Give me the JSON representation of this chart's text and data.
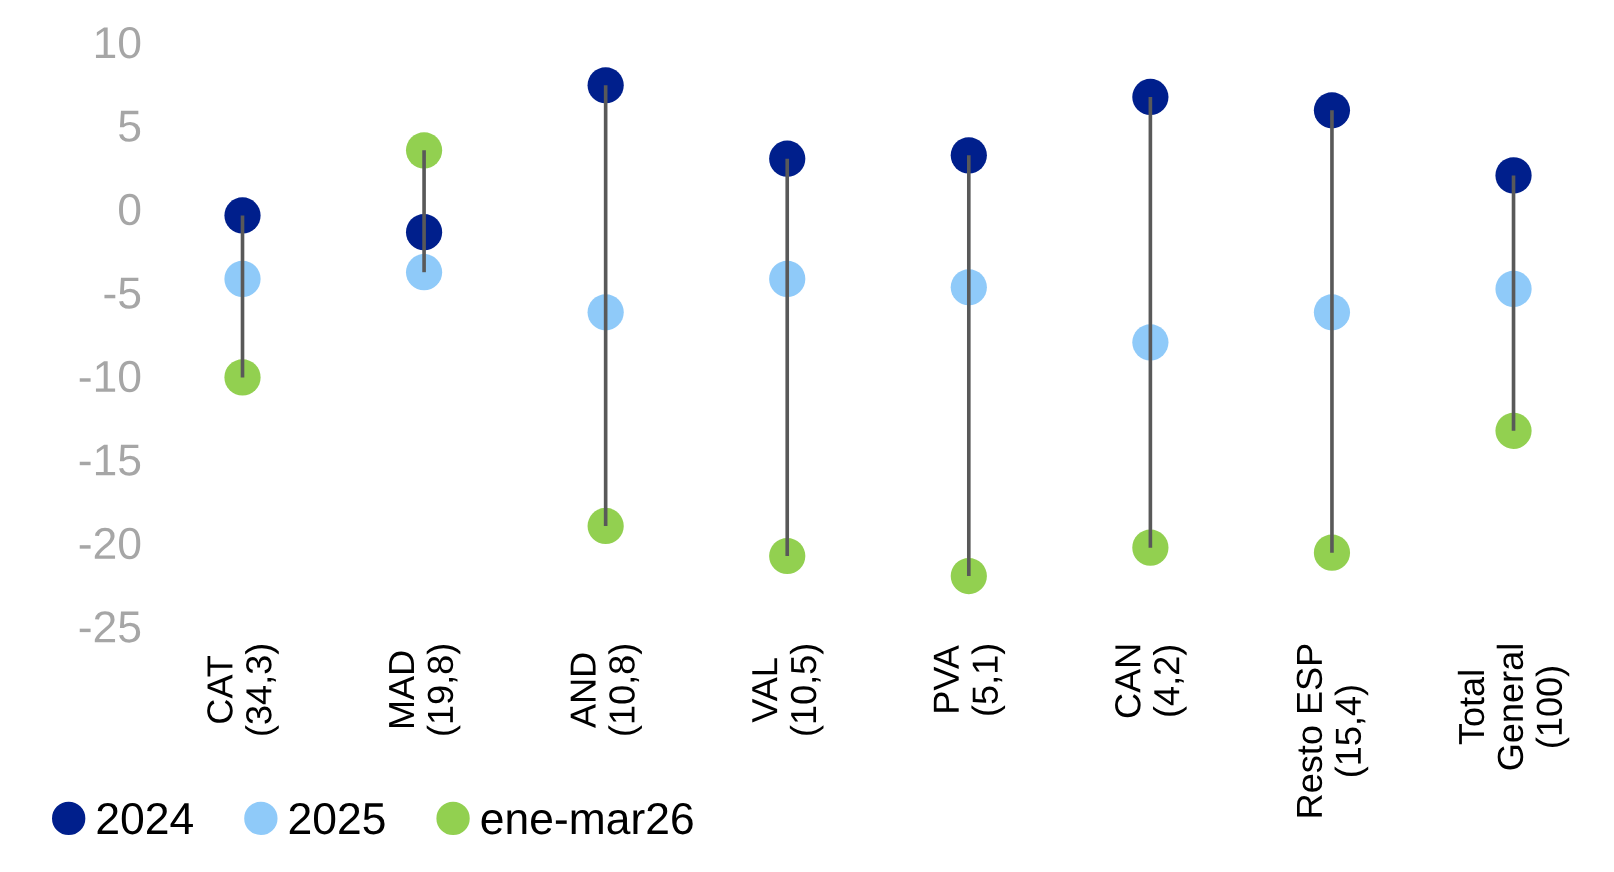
{
  "chart_data": {
    "type": "scatter",
    "categories": [
      "CAT\n(34,3)",
      "MAD\n(19,8)",
      "AND\n(10,8)",
      "VAL\n(10,5)",
      "PVA\n(5,1)",
      "CAN\n(4,2)",
      "Resto ESP\n(15,4)",
      "Total\nGeneral\n(100)"
    ],
    "series": [
      {
        "type": "bar",
        "color": "#595959",
        "base": [
          -10.1,
          -3.8,
          -19.0,
          -20.8,
          -22.0,
          -20.3,
          -20.6,
          -13.3
        ],
        "values": [
          9.7,
          7.3,
          26.4,
          23.8,
          25.2,
          27.0,
          26.5,
          15.3
        ]
      },
      {
        "name": "2024",
        "color": "#001f8c",
        "values": [
          -0.4,
          -1.4,
          7.4,
          3.0,
          3.2,
          6.7,
          5.9,
          2.0
        ]
      },
      {
        "name": "2025",
        "color": "#8fcaf9",
        "values": [
          -4.2,
          -3.8,
          -6.2,
          -4.2,
          -4.7,
          -8.0,
          -6.2,
          -4.8
        ]
      },
      {
        "name": "ene-mar26",
        "color": "#92d050",
        "values": [
          -10.1,
          3.5,
          -19.0,
          -20.8,
          -22.0,
          -20.3,
          -20.6,
          -13.3
        ]
      }
    ],
    "ylim": [
      -25,
      10
    ],
    "yticks": [
      -25,
      -20,
      -15,
      -10,
      -5,
      0,
      5,
      10
    ],
    "grid": false,
    "legend": "bottom",
    "marker": "circle"
  }
}
